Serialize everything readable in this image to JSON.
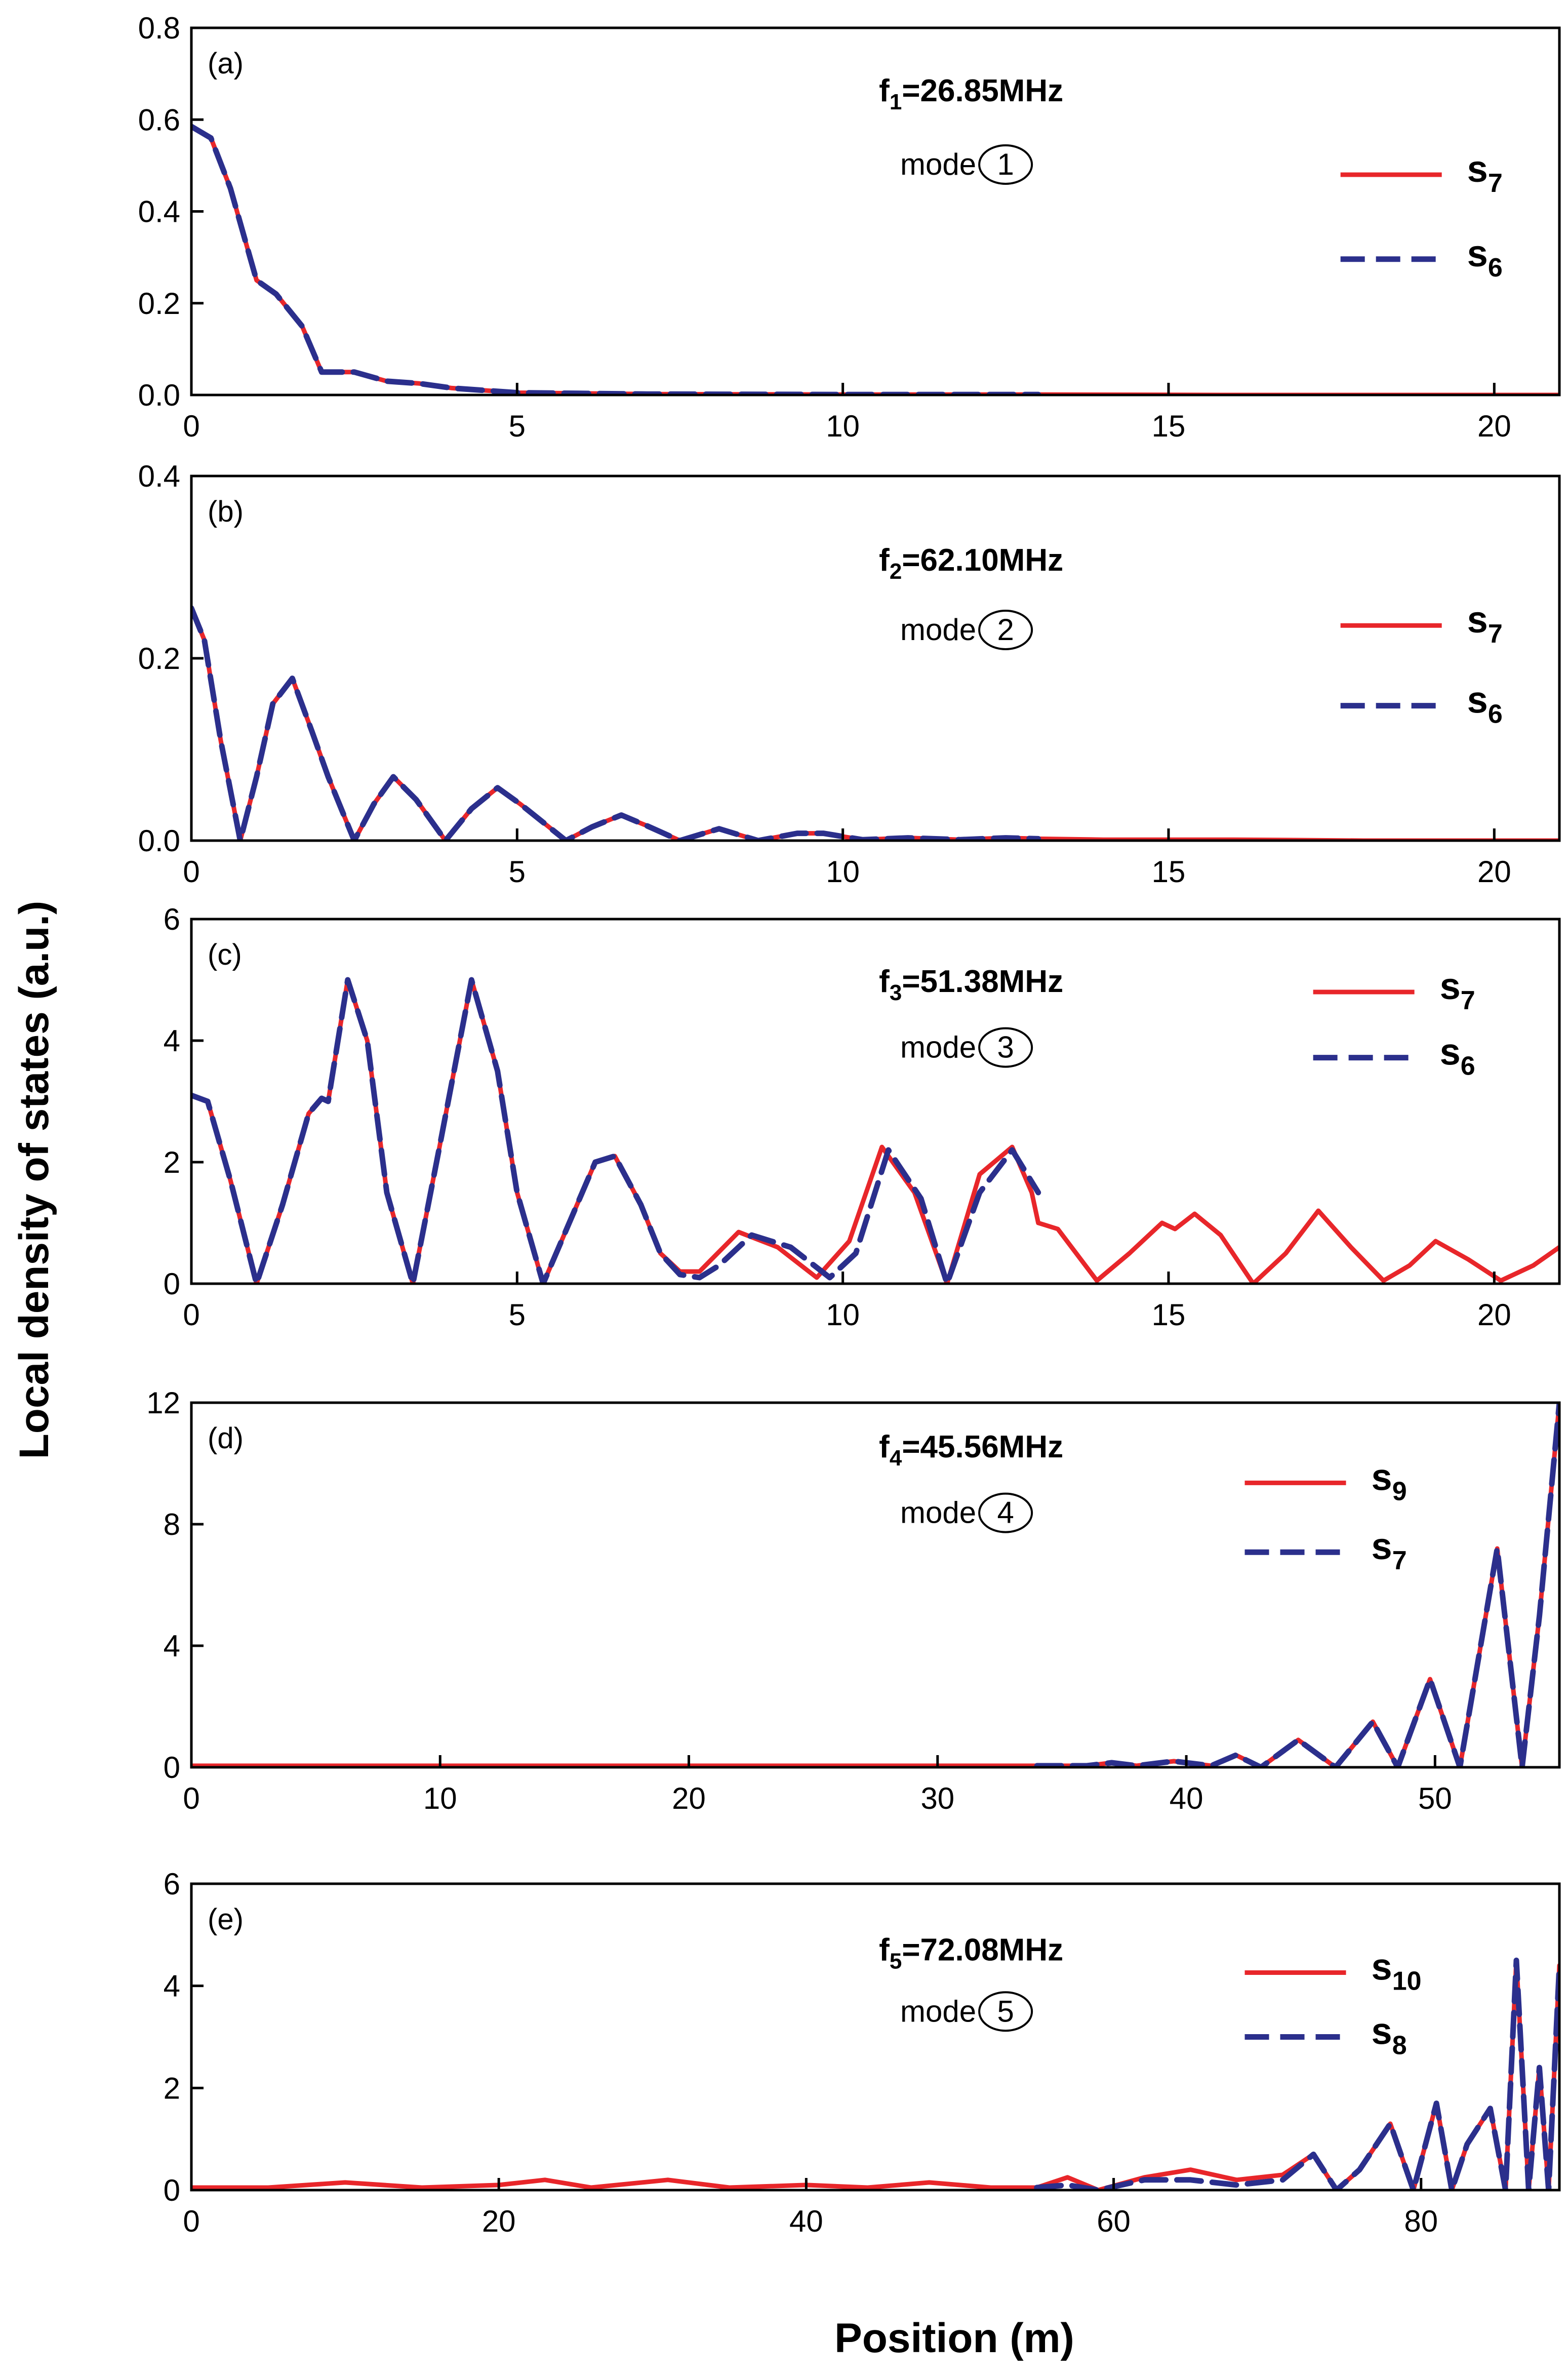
{
  "figure": {
    "ylabel": "Local density of states (a.u.)",
    "xlabel": "Position (m)"
  },
  "colors": {
    "primary": "#e8262a",
    "secondary": "#2b2f8c",
    "axis": "#000000"
  },
  "chart_data": [
    {
      "type": "line",
      "panel": "(a)",
      "freq_sym": "f",
      "freq_sub": "1",
      "freq_val": "=26.85MHz",
      "mode_text": "mode",
      "mode_num": "1",
      "xlim": [
        0,
        21
      ],
      "ylim": [
        0,
        0.8
      ],
      "xticks": [
        0,
        5,
        10,
        15,
        20
      ],
      "yticks": [
        0.0,
        0.2,
        0.4,
        0.6,
        0.8
      ],
      "ytick_labels": [
        "0.0",
        "0.2",
        "0.4",
        "0.6",
        "0.8"
      ],
      "series": [
        {
          "name": "s7",
          "sym": "s",
          "sub": "7",
          "style": "solid",
          "x": [
            0,
            0.3,
            0.6,
            0.9,
            1.0,
            1.3,
            1.7,
            2.0,
            2.5,
            3.0,
            3.5,
            4.0,
            5.0,
            7.0,
            10.0,
            13.0,
            16.0,
            21.0
          ],
          "y": [
            0.585,
            0.56,
            0.45,
            0.3,
            0.25,
            0.22,
            0.15,
            0.05,
            0.05,
            0.03,
            0.025,
            0.015,
            0.005,
            0.002,
            0.001,
            0.001,
            0.0,
            0.0
          ]
        },
        {
          "name": "s6",
          "sym": "s",
          "sub": "6",
          "style": "dashed",
          "x": [
            0,
            0.3,
            0.6,
            0.9,
            1.0,
            1.3,
            1.7,
            2.0,
            2.5,
            3.0,
            3.5,
            4.0,
            5.0,
            7.0,
            10.0,
            13.0
          ],
          "y": [
            0.585,
            0.56,
            0.45,
            0.3,
            0.25,
            0.22,
            0.15,
            0.05,
            0.05,
            0.03,
            0.025,
            0.015,
            0.005,
            0.002,
            0.001,
            0.001
          ]
        }
      ]
    },
    {
      "type": "line",
      "panel": "(b)",
      "freq_sym": "f",
      "freq_sub": "2",
      "freq_val": "=62.10MHz",
      "mode_text": "mode",
      "mode_num": "2",
      "xlim": [
        0,
        21
      ],
      "ylim": [
        0,
        0.4
      ],
      "xticks": [
        0,
        5,
        10,
        15,
        20
      ],
      "yticks": [
        0.0,
        0.2,
        0.4
      ],
      "ytick_labels": [
        "0.0",
        "0.2",
        "0.4"
      ],
      "series": [
        {
          "name": "s7",
          "sym": "s",
          "sub": "7",
          "style": "solid",
          "x": [
            0,
            0.2,
            0.45,
            0.75,
            1.0,
            1.25,
            1.55,
            1.85,
            2.1,
            2.5,
            2.8,
            3.1,
            3.45,
            3.9,
            4.3,
            4.7,
            5.05,
            5.75,
            6.15,
            6.6,
            7.0,
            7.5,
            8.1,
            8.7,
            9.3,
            9.7,
            10.3,
            11.0,
            11.8,
            12.5,
            13.0,
            14.0,
            16.0,
            18.0,
            21.0
          ],
          "y": [
            0.255,
            0.22,
            0.11,
            0.0,
            0.07,
            0.15,
            0.178,
            0.12,
            0.07,
            0.0,
            0.04,
            0.07,
            0.045,
            0.0,
            0.035,
            0.058,
            0.04,
            0.0,
            0.015,
            0.028,
            0.016,
            0.0,
            0.013,
            0.0,
            0.008,
            0.008,
            0.001,
            0.003,
            0.001,
            0.003,
            0.002,
            0.001,
            0.001,
            0.0,
            0.0
          ]
        },
        {
          "name": "s6",
          "sym": "s",
          "sub": "6",
          "style": "dashed",
          "x": [
            0,
            0.2,
            0.45,
            0.75,
            1.0,
            1.25,
            1.55,
            1.85,
            2.1,
            2.5,
            2.8,
            3.1,
            3.45,
            3.9,
            4.3,
            4.7,
            5.05,
            5.75,
            6.15,
            6.6,
            7.0,
            7.5,
            8.1,
            8.7,
            9.3,
            9.7,
            10.3,
            11.0,
            11.8,
            12.5,
            13.0
          ],
          "y": [
            0.255,
            0.22,
            0.11,
            0.0,
            0.07,
            0.15,
            0.178,
            0.12,
            0.07,
            0.0,
            0.04,
            0.07,
            0.045,
            0.0,
            0.035,
            0.058,
            0.04,
            0.0,
            0.015,
            0.028,
            0.016,
            0.0,
            0.013,
            0.0,
            0.008,
            0.008,
            0.001,
            0.003,
            0.001,
            0.003,
            0.002
          ]
        }
      ]
    },
    {
      "type": "line",
      "panel": "(c)",
      "freq_sym": "f",
      "freq_sub": "3",
      "freq_val": "=51.38MHz",
      "mode_text": "mode",
      "mode_num": "3",
      "xlim": [
        0,
        21
      ],
      "ylim": [
        0,
        6
      ],
      "xticks": [
        0,
        5,
        10,
        15,
        20
      ],
      "yticks": [
        0,
        2,
        4,
        6
      ],
      "ytick_labels": [
        "0",
        "2",
        "4",
        "6"
      ],
      "series": [
        {
          "name": "s7",
          "sym": "s",
          "sub": "7",
          "style": "solid",
          "x": [
            0,
            0.25,
            0.6,
            1.0,
            1.4,
            1.8,
            2.0,
            2.1,
            2.4,
            2.7,
            3.0,
            3.4,
            3.8,
            4.3,
            4.7,
            5.0,
            5.4,
            5.8,
            6.2,
            6.5,
            6.9,
            7.2,
            7.5,
            7.8,
            8.4,
            9.0,
            9.6,
            10.1,
            10.6,
            11.1,
            11.6,
            12.1,
            12.6,
            12.9,
            13.0,
            13.3,
            13.9,
            14.4,
            14.9,
            15.1,
            15.4,
            15.8,
            16.3,
            16.8,
            17.3,
            17.8,
            18.3,
            18.7,
            19.1,
            19.6,
            20.1,
            20.6,
            21.0
          ],
          "y": [
            3.1,
            3.0,
            1.7,
            0.0,
            1.3,
            2.8,
            3.05,
            3.0,
            5.0,
            4.0,
            1.5,
            0.0,
            2.2,
            5.0,
            3.5,
            1.5,
            0.0,
            1.0,
            2.0,
            2.1,
            1.3,
            0.5,
            0.2,
            0.2,
            0.85,
            0.6,
            0.1,
            0.7,
            2.25,
            1.5,
            0.0,
            1.8,
            2.25,
            1.5,
            1.0,
            0.9,
            0.05,
            0.5,
            1.0,
            0.9,
            1.15,
            0.8,
            0.0,
            0.5,
            1.2,
            0.6,
            0.05,
            0.3,
            0.7,
            0.4,
            0.05,
            0.3,
            0.6
          ]
        },
        {
          "name": "s6",
          "sym": "s",
          "sub": "6",
          "style": "dashed",
          "x": [
            0,
            0.25,
            0.6,
            1.0,
            1.4,
            1.8,
            2.0,
            2.1,
            2.4,
            2.7,
            3.0,
            3.4,
            3.8,
            4.3,
            4.7,
            5.0,
            5.4,
            5.8,
            6.2,
            6.5,
            6.9,
            7.2,
            7.5,
            7.8,
            8.1,
            8.6,
            9.2,
            9.8,
            10.2,
            10.7,
            11.2,
            11.6,
            12.1,
            12.6,
            13.0
          ],
          "y": [
            3.1,
            3.0,
            1.7,
            0.0,
            1.3,
            2.8,
            3.05,
            3.0,
            5.0,
            4.0,
            1.5,
            0.0,
            2.2,
            5.0,
            3.5,
            1.5,
            0.0,
            1.0,
            2.0,
            2.1,
            1.3,
            0.5,
            0.15,
            0.1,
            0.3,
            0.8,
            0.6,
            0.1,
            0.5,
            2.2,
            1.4,
            0.0,
            1.5,
            2.2,
            1.5
          ]
        }
      ]
    },
    {
      "type": "line",
      "panel": "(d)",
      "freq_sym": "f",
      "freq_sub": "4",
      "freq_val": "=45.56MHz",
      "mode_text": "mode",
      "mode_num": "4",
      "xlim": [
        0,
        55
      ],
      "ylim": [
        0,
        12
      ],
      "xticks": [
        0,
        10,
        20,
        30,
        40,
        50
      ],
      "yticks": [
        0,
        4,
        8,
        12
      ],
      "ytick_labels": [
        "0",
        "4",
        "8",
        "12"
      ],
      "series": [
        {
          "name": "s9",
          "sym": "s",
          "sub": "9",
          "style": "solid",
          "x": [
            0,
            5,
            10,
            15,
            20,
            25,
            30,
            34,
            36,
            37,
            38,
            39.5,
            41,
            42,
            43,
            44.5,
            46,
            47.5,
            48.5,
            49.8,
            51,
            52.5,
            53.5,
            54.2,
            55
          ],
          "y": [
            0.05,
            0.05,
            0.05,
            0.05,
            0.05,
            0.05,
            0.05,
            0.05,
            0.05,
            0.15,
            0.05,
            0.2,
            0.05,
            0.4,
            0.0,
            0.9,
            0.0,
            1.5,
            0.0,
            2.9,
            0.0,
            7.2,
            0.0,
            5.0,
            12.0
          ]
        },
        {
          "name": "s7",
          "sym": "s",
          "sub": "7",
          "style": "dashed",
          "x": [
            34,
            36,
            37,
            38,
            39.5,
            41,
            42,
            43,
            44.5,
            46,
            47.5,
            48.5,
            49.8,
            51,
            52.5,
            53.5,
            54.2,
            55
          ],
          "y": [
            0.05,
            0.05,
            0.15,
            0.05,
            0.2,
            0.05,
            0.4,
            0.0,
            0.9,
            0.0,
            1.5,
            0.0,
            2.9,
            0.0,
            7.2,
            0.0,
            5.0,
            12.0
          ]
        }
      ]
    },
    {
      "type": "line",
      "panel": "(e)",
      "freq_sym": "f",
      "freq_sub": "5",
      "freq_val": "=72.08MHz",
      "mode_text": "mode",
      "mode_num": "5",
      "xlim": [
        0,
        89
      ],
      "ylim": [
        0,
        6
      ],
      "xticks": [
        0,
        20,
        40,
        60,
        80
      ],
      "yticks": [
        0,
        2,
        4,
        6
      ],
      "ytick_labels": [
        "0",
        "2",
        "4",
        "6"
      ],
      "series": [
        {
          "name": "s10",
          "sym": "s",
          "sub": "10",
          "style": "solid",
          "x": [
            0,
            5,
            10,
            15,
            20,
            23,
            26,
            31,
            35,
            40,
            44,
            48,
            52,
            55,
            57,
            59,
            62,
            65,
            68,
            71,
            73,
            74.5,
            76,
            78,
            79.5,
            81,
            82,
            83,
            84.5,
            85.5,
            86.2,
            87,
            87.7,
            88.3,
            89
          ],
          "y": [
            0.05,
            0.05,
            0.15,
            0.05,
            0.1,
            0.2,
            0.05,
            0.2,
            0.05,
            0.1,
            0.05,
            0.15,
            0.05,
            0.05,
            0.25,
            0.0,
            0.25,
            0.4,
            0.2,
            0.3,
            0.7,
            0.0,
            0.4,
            1.3,
            0.0,
            1.7,
            0.0,
            0.9,
            1.6,
            0.0,
            4.5,
            0.0,
            2.4,
            0.0,
            4.4
          ]
        },
        {
          "name": "s8",
          "sym": "s",
          "sub": "8",
          "style": "dashed",
          "x": [
            55,
            57,
            59,
            62,
            65,
            68,
            71,
            73,
            74.5,
            76,
            78,
            79.5,
            81,
            82,
            83,
            84.5,
            85.5,
            86.2,
            87,
            87.7,
            88.3,
            89
          ],
          "y": [
            0.05,
            0.1,
            0.0,
            0.2,
            0.2,
            0.1,
            0.2,
            0.7,
            0.0,
            0.4,
            1.3,
            0.0,
            1.7,
            0.0,
            0.9,
            1.6,
            0.0,
            4.5,
            0.0,
            2.4,
            0.0,
            4.4
          ]
        }
      ]
    }
  ]
}
